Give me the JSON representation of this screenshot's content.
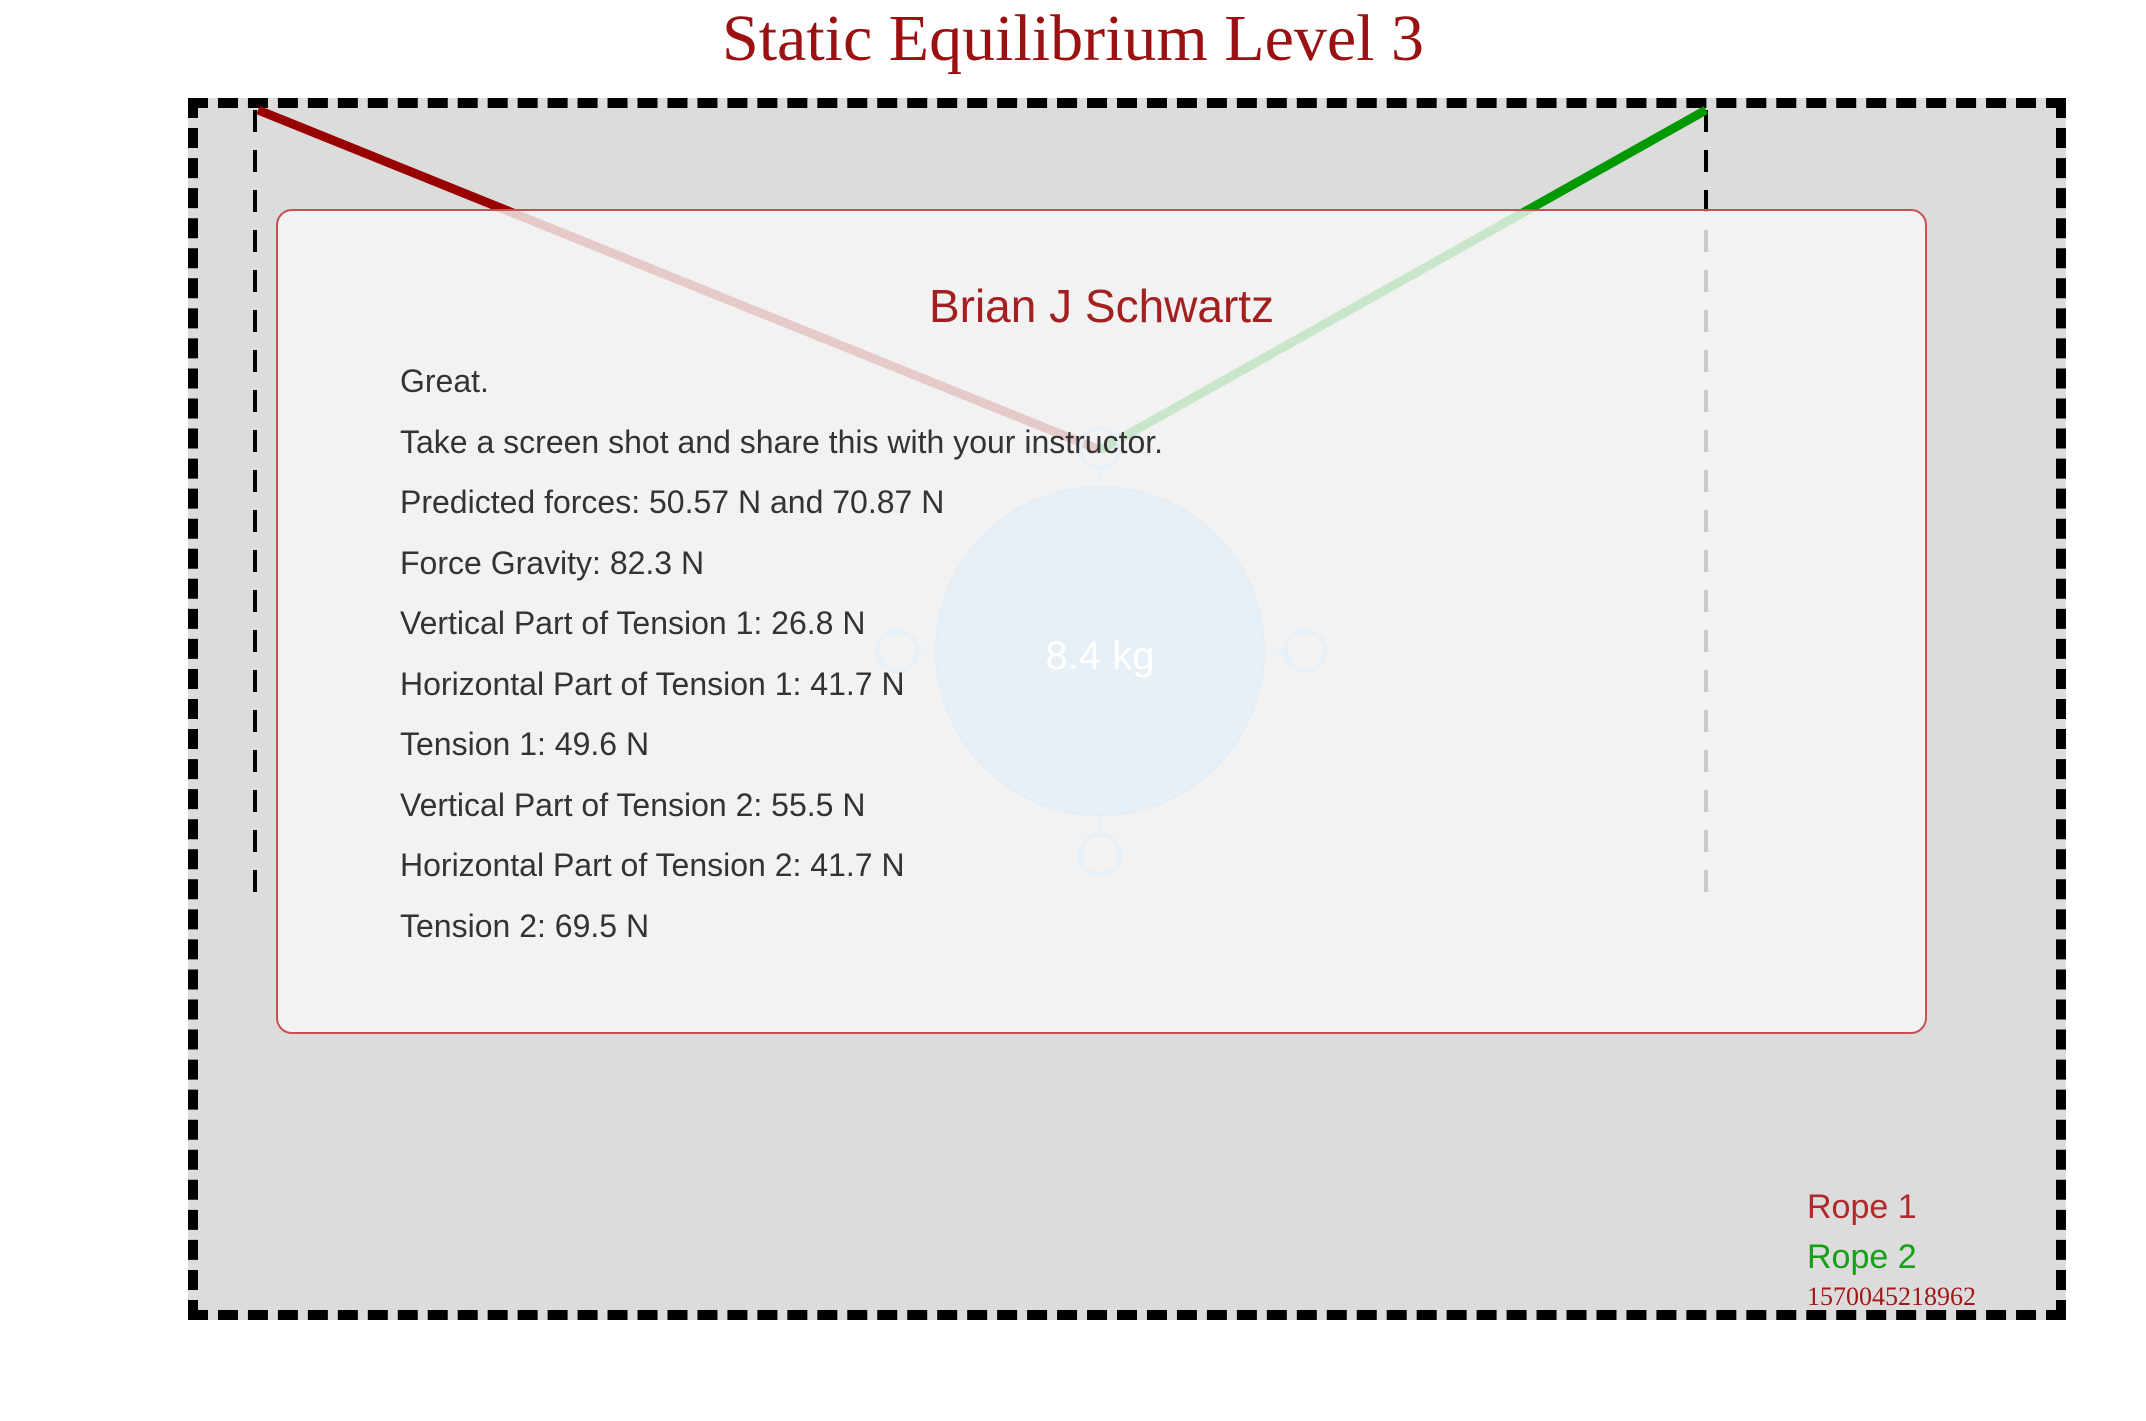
{
  "page": {
    "title": "Static Equilibrium Level 3"
  },
  "dialog": {
    "name": "Brian J Schwartz",
    "lines": [
      "Great.",
      "Take a screen shot and share this with your instructor.",
      "Predicted forces:  50.57 N and 70.87 N",
      "Force Gravity: 82.3 N",
      "Vertical Part of Tension 1: 26.8 N",
      "Horizontal Part of Tension 1: 41.7 N",
      "Tension 1: 49.6 N",
      "Vertical Part of Tension 2: 55.5 N",
      "Horizontal Part of Tension 2: 41.7 N",
      "Tension 2: 69.5 N"
    ]
  },
  "mass": {
    "label": "8.4 kg",
    "color": "#cde8fb"
  },
  "legend": {
    "rope1": {
      "label": "Rope 1",
      "color": "#990000"
    },
    "rope2": {
      "label": "Rope 2",
      "color": "#009900"
    },
    "timestamp": "1570045218962"
  }
}
